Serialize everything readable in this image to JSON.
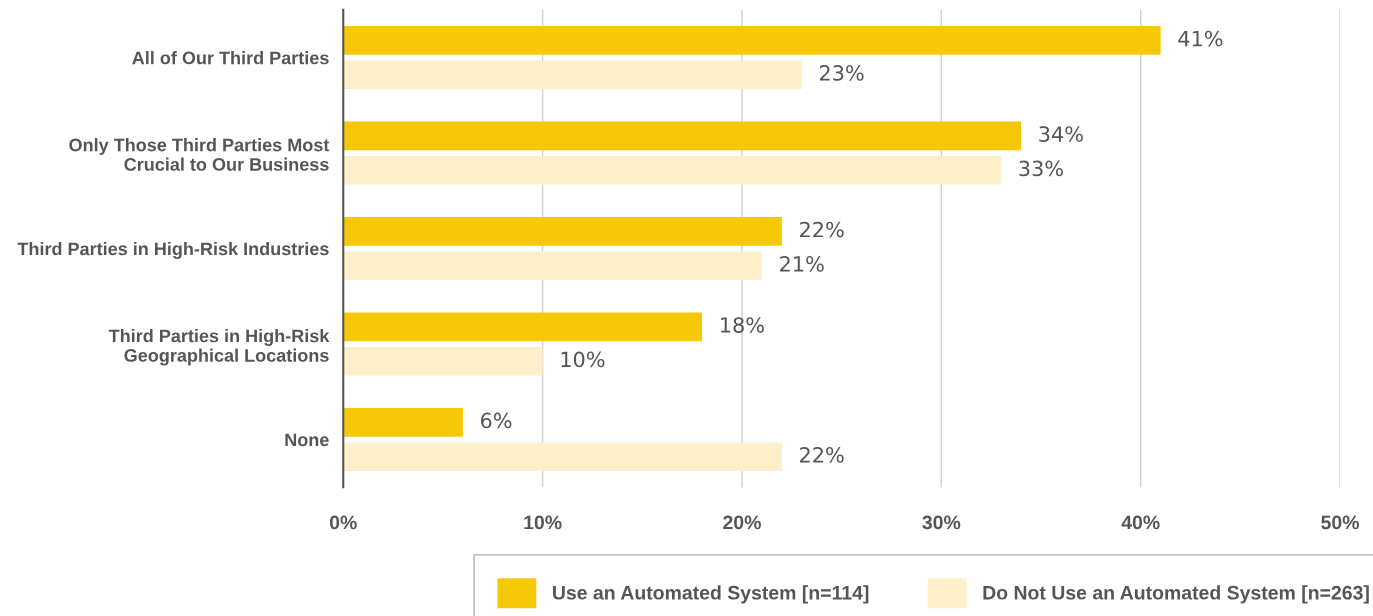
{
  "chart_data": {
    "type": "bar",
    "orientation": "horizontal",
    "categories": [
      "All of Our Third Parties",
      "Only Those Third Parties Most\nCrucial to Our Business",
      "Third Parties in High-Risk Industries",
      "Third Parties in High-Risk\nGeographical Locations",
      "None"
    ],
    "series": [
      {
        "name": "Use an Automated System [n=114]",
        "color": "#f7c808",
        "values": [
          41,
          34,
          22,
          18,
          6
        ],
        "value_labels": [
          "41%",
          "34%",
          "22%",
          "18%",
          "6%"
        ]
      },
      {
        "name": "Do Not Use an Automated System [n=263]",
        "color": "#fcefc9",
        "values": [
          23,
          33,
          21,
          10,
          22
        ],
        "value_labels": [
          "23%",
          "33%",
          "21%",
          "10%",
          "22%"
        ]
      }
    ],
    "xlim": [
      0,
      50
    ],
    "xticks": [
      {
        "value": 0,
        "label": "0%"
      },
      {
        "value": 10,
        "label": "10%"
      },
      {
        "value": 20,
        "label": "20%"
      },
      {
        "value": 30,
        "label": "30%"
      },
      {
        "value": 40,
        "label": "40%"
      },
      {
        "value": 50,
        "label": "50%"
      }
    ],
    "grid": "x",
    "legend": "bottom"
  }
}
